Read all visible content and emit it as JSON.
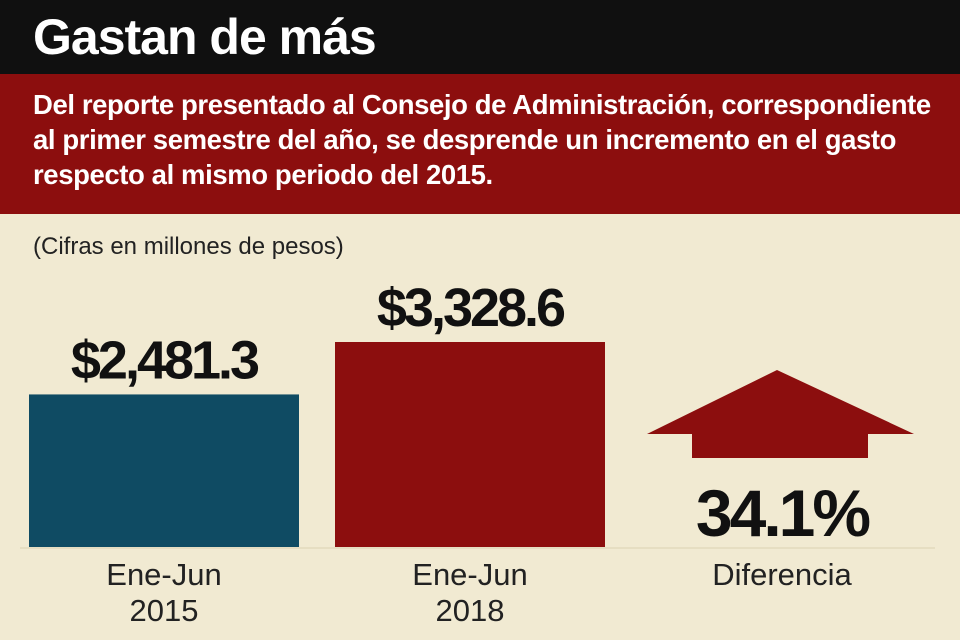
{
  "header": {
    "title": "Gastan de más",
    "subtitle": "Del reporte presentado al Consejo de Administración, correspondiente al primer semestre del año, se desprende un incremento en el gasto respecto al mismo periodo del 2015."
  },
  "units_note": "(Cifras en millones de pesos)",
  "colors": {
    "bar_2015": "#0f4b63",
    "bar_2018": "#8c0e0e",
    "arrow": "#8c0e0e",
    "header_bg": "#101010",
    "subtitle_bg": "#8c0e0e",
    "background": "#f1ead2"
  },
  "chart_data": {
    "type": "bar",
    "categories": [
      "Ene-Jun 2015",
      "Ene-Jun 2018"
    ],
    "category_lines": [
      [
        "Ene-Jun",
        "2015"
      ],
      [
        "Ene-Jun",
        "2018"
      ]
    ],
    "values": [
      2481.3,
      3328.6
    ],
    "value_labels": [
      "$2,481.3",
      "$3,328.6"
    ],
    "difference": {
      "label": "Diferencia",
      "value_label": "34.1%",
      "value": 34.1,
      "icon": "up-arrow-icon"
    },
    "ylim": [
      0,
      3328.6
    ]
  }
}
